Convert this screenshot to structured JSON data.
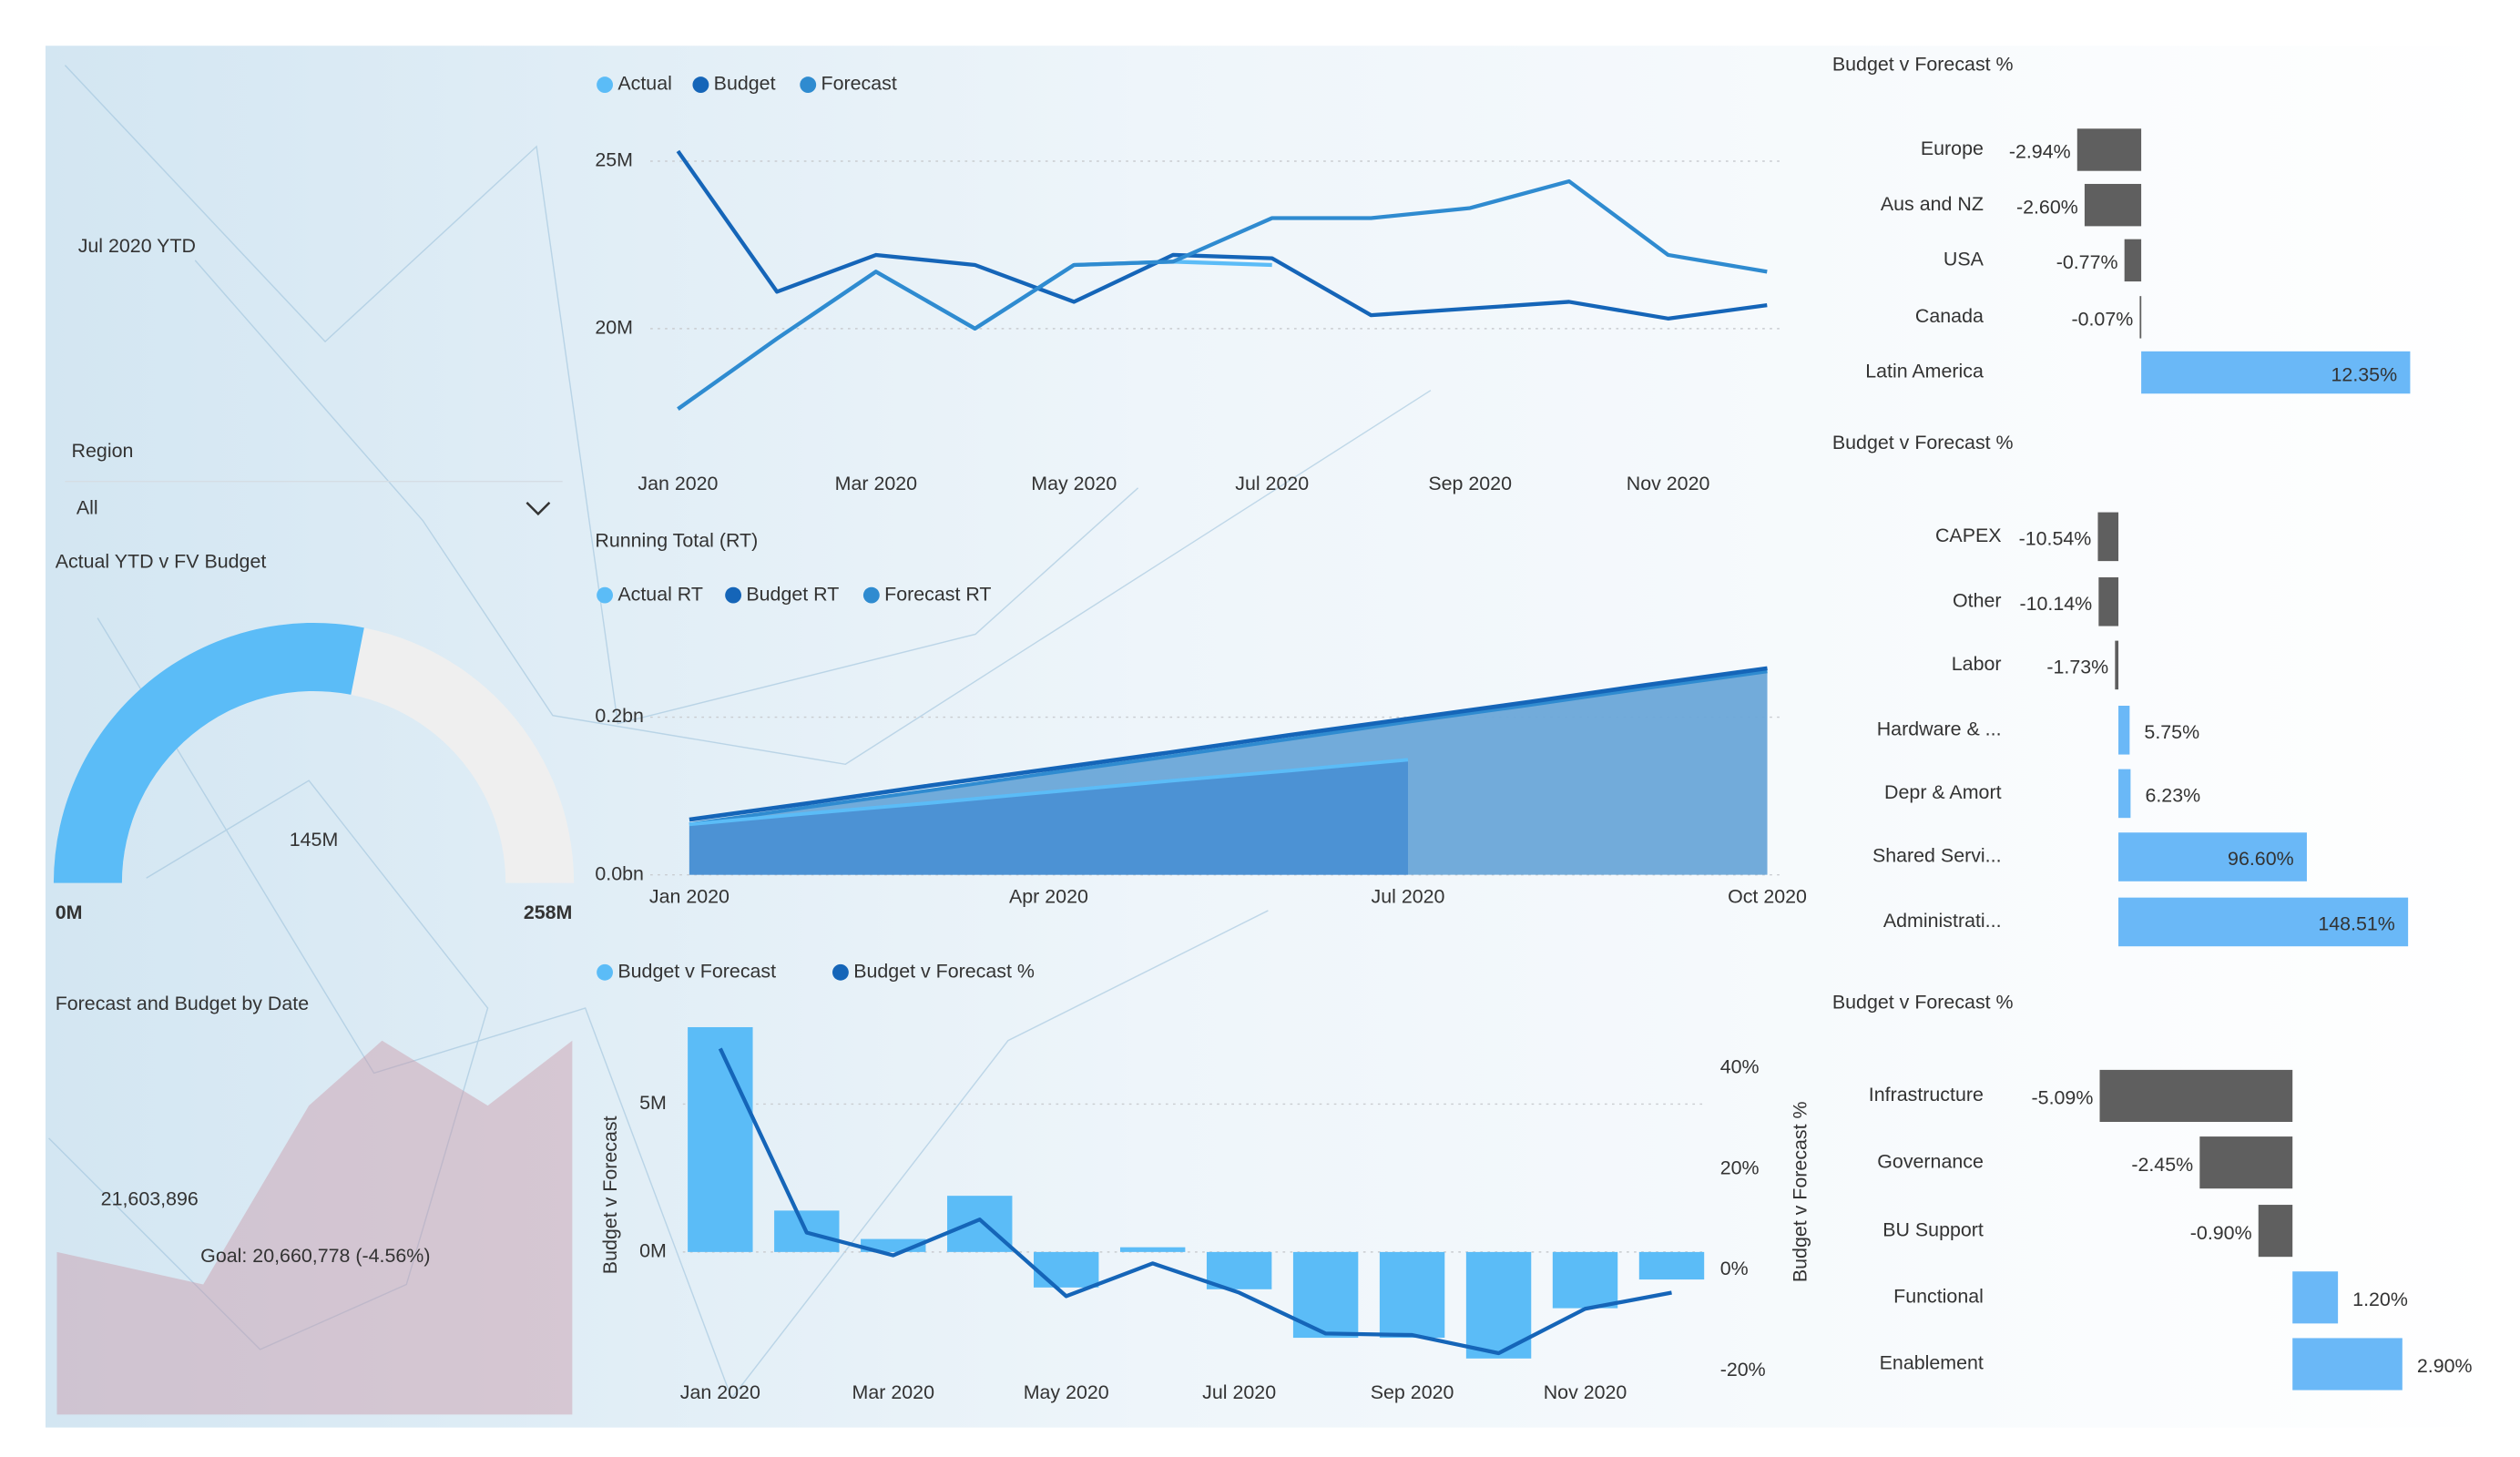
{
  "title": "Jul 2020 YTD",
  "slicer": {
    "label": "Region",
    "value": "All"
  },
  "kpi": {
    "title": "Forecast and Budget by Date",
    "value": "21,603,896",
    "goal": "Goal: 20,660,778 (-4.56%)"
  },
  "chart_data": [
    {
      "type": "line",
      "categories": [
        "Jan 2020",
        null,
        "Mar 2020",
        null,
        "May 2020",
        null,
        "Jul 2020",
        null,
        "Sep 2020",
        null,
        "Nov 2020",
        null
      ],
      "series": [
        {
          "name": "Actual",
          "color": "#5bbcf7",
          "values": [
            17600000,
            19700000,
            21700000,
            20000000,
            21900000,
            22000000,
            21900000,
            null,
            null,
            null,
            null,
            null
          ]
        },
        {
          "name": "Budget",
          "color": "#1565b8",
          "values": [
            25300000,
            21100000,
            22200000,
            21900000,
            20800000,
            22200000,
            22100000,
            20400000,
            20600000,
            20800000,
            20300000,
            20700000
          ]
        },
        {
          "name": "Forecast",
          "color": "#2f8bd0",
          "values": [
            17600000,
            19700000,
            21700000,
            20000000,
            21900000,
            22000000,
            23300000,
            23300000,
            23600000,
            24400000,
            22200000,
            21700000
          ]
        }
      ],
      "ylim": [
        16000000,
        26000000
      ],
      "yticks": [
        {
          "value": 20000000,
          "label": "20M"
        },
        {
          "value": 25000000,
          "label": "25M"
        }
      ],
      "grid": true
    },
    {
      "type": "area",
      "title": "Running Total (RT)",
      "categories": [
        "Jan 2020",
        null,
        null,
        "Apr 2020",
        null,
        null,
        "Jul 2020",
        null,
        null,
        "Oct 2020"
      ],
      "series": [
        {
          "name": "Actual RT",
          "color": "#5bbcf7",
          "values": [
            64000000,
            78000000,
            91000000,
            105000000,
            119000000,
            132000000,
            146000000,
            null,
            null,
            null
          ]
        },
        {
          "name": "Budget RT",
          "color": "#1565b8",
          "values": [
            70000000,
            91000000,
            113000000,
            134000000,
            155000000,
            177000000,
            198000000,
            219000000,
            241000000,
            262000000
          ]
        },
        {
          "name": "Forecast RT",
          "color": "#2f8bd0",
          "values": [
            64000000,
            86000000,
            107000000,
            129000000,
            150000000,
            172000000,
            194000000,
            215000000,
            237000000,
            258000000
          ]
        }
      ],
      "ylim": [
        0,
        305000000
      ],
      "yticks": [
        {
          "value": 0,
          "label": "0.0bn"
        },
        {
          "value": 200000000,
          "label": "0.2bn"
        }
      ],
      "grid": true
    },
    {
      "type": "combo",
      "categories": [
        "Jan 2020",
        null,
        "Mar 2020",
        null,
        "May 2020",
        null,
        "Jul 2020",
        null,
        "Sep 2020",
        null,
        "Nov 2020",
        null
      ],
      "series": [
        {
          "name": "Budget v Forecast",
          "color": "#5bbcf7",
          "values": [
            7600000,
            1400000,
            440000,
            1900000,
            -1200000,
            160000,
            -1260000,
            -2900000,
            -2900000,
            -3600000,
            -1900000,
            -930000
          ]
        },
        {
          "name": "Budget v Forecast %",
          "color": "#1565b8",
          "axis": "y2",
          "values": [
            43.9,
            7.4,
            2.9,
            10,
            -5.2,
            1.3,
            -4.5,
            -12.6,
            -12.9,
            -16.5,
            -7.7,
            -4.5
          ]
        }
      ],
      "y_label": "Budget v Forecast",
      "y2_label": "Budget v Forecast %",
      "ylim": [
        -4120000,
        7970000
      ],
      "yticks": [
        {
          "value": 0,
          "label": "0M"
        },
        {
          "value": 5000000,
          "label": "5M"
        }
      ],
      "y2lim": [
        -20.6,
        50.3
      ],
      "y2ticks": [
        {
          "value": -20,
          "label": "-20%"
        },
        {
          "value": 0,
          "label": "0%"
        },
        {
          "value": 20,
          "label": "20%"
        },
        {
          "value": 40,
          "label": "40%"
        }
      ],
      "grid": true
    },
    {
      "type": "hbar",
      "title": "Budget v Forecast %",
      "categories": [
        "Europe",
        "Aus and NZ",
        "USA",
        "Canada",
        "Latin America"
      ],
      "values": [
        -2.94,
        -2.6,
        -0.77,
        -0.07,
        12.35
      ],
      "value_labels": [
        "-2.94%",
        "-2.60%",
        "-0.77%",
        "-0.07%",
        "12.35%"
      ],
      "xlim": [
        -5.75,
        13.66
      ],
      "negative_color": "#5f5f5f",
      "positive_color": "#6ab8f7"
    },
    {
      "type": "hbar",
      "title": "Budget v Forecast %",
      "categories": [
        "CAPEX",
        "Other",
        "Labor",
        "Hardware & ...",
        "Depr & Amort",
        "Shared Servi...",
        "Administrati..."
      ],
      "values": [
        -10.54,
        -10.14,
        -1.73,
        5.75,
        6.23,
        96.6,
        148.51
      ],
      "value_labels": [
        "-10.54%",
        "-10.14%",
        "-1.73%",
        "5.75%",
        "6.23%",
        "96.60%",
        "148.51%"
      ],
      "xlim": [
        -52.5,
        164.2
      ],
      "negative_color": "#5f5f5f",
      "positive_color": "#6ab8f7"
    },
    {
      "type": "hbar",
      "title": "Budget v Forecast %",
      "categories": [
        "Infrastructure",
        "Governance",
        "BU Support",
        "Functional",
        "Enablement"
      ],
      "values": [
        -5.09,
        -2.45,
        -0.9,
        1.2,
        2.9
      ],
      "value_labels": [
        "-5.09%",
        "-2.45%",
        "-0.90%",
        "1.20%",
        "2.90%"
      ],
      "xlim": [
        -7.3,
        3.86
      ],
      "negative_color": "#5f5f5f",
      "positive_color": "#6ab8f7"
    },
    {
      "type": "gauge",
      "title": "Actual YTD v FV Budget",
      "value": 145,
      "value_label": "145M",
      "min": {
        "value": 0,
        "label": "0M"
      },
      "max": {
        "value": 258,
        "label": "258M"
      },
      "color": "#5bbcf7",
      "track_color": "#efefef"
    }
  ]
}
